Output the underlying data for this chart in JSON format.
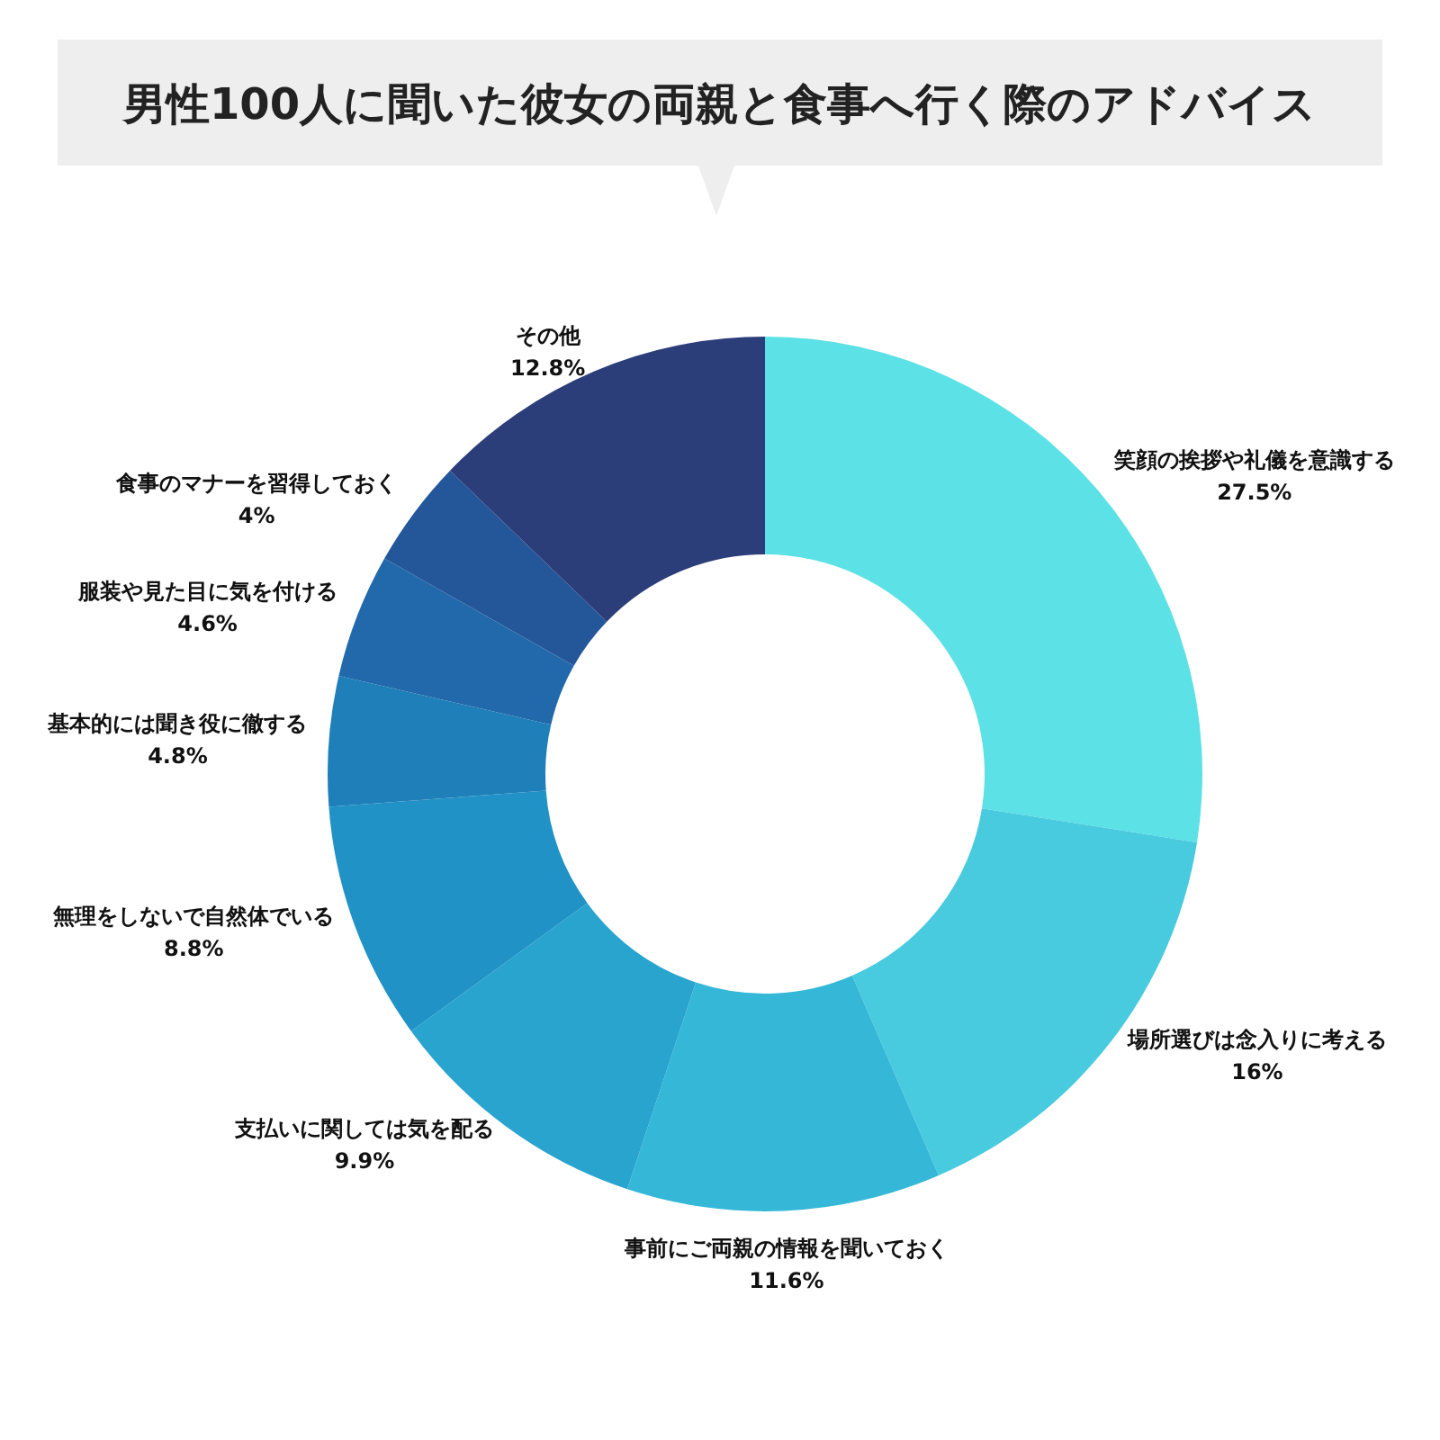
{
  "chart_data": {
    "type": "donut",
    "title": "男性100人に聞いた彼女の両親と食事へ行く際のアドバイス",
    "categories": [
      "笑顔の挨拶や礼儀を意識する",
      "場所選びは念入りに考える",
      "事前にご両親の情報を聞いておく",
      "支払いに関しては気を配る",
      "無理をしないで自然体でいる",
      "基本的には聞き役に徹する",
      "服装や見た目に気を付ける",
      "食事のマナーを習得しておく",
      "その他"
    ],
    "values": [
      27.5,
      16,
      11.6,
      9.9,
      8.8,
      4.8,
      4.6,
      4,
      12.8
    ],
    "colors": [
      "#5ce1e6",
      "#48cadf",
      "#35b8d8",
      "#28a4cf",
      "#2192c6",
      "#1f7fb9",
      "#2169ab",
      "#24579a",
      "#2c3e7a"
    ],
    "value_labels": [
      "27.5%",
      "16%",
      "11.6%",
      "9.9%",
      "8.8%",
      "4.8%",
      "4.6%",
      "4%",
      "12.8%"
    ]
  }
}
